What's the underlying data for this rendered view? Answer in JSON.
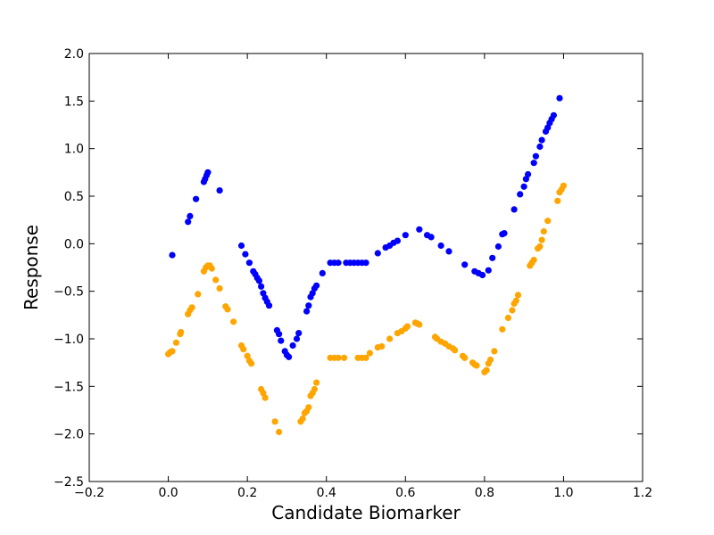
{
  "chart_data": {
    "type": "scatter",
    "title": "",
    "xlabel": "Candidate Biomarker",
    "ylabel": "Response",
    "xlim": [
      -0.2,
      1.2
    ],
    "ylim": [
      -2.5,
      2.0
    ],
    "x_ticks": [
      -0.2,
      0.0,
      0.2,
      0.4,
      0.6,
      0.8,
      1.0,
      1.2
    ],
    "x_tick_labels": [
      "−0.2",
      "0.0",
      "0.2",
      "0.4",
      "0.6",
      "0.8",
      "1.0",
      "1.2"
    ],
    "y_ticks": [
      -2.5,
      -2.0,
      -1.5,
      -1.0,
      -0.5,
      0.0,
      0.5,
      1.0,
      1.5,
      2.0
    ],
    "y_tick_labels": [
      "−2.5",
      "−2.0",
      "−1.5",
      "−1.0",
      "−0.5",
      "0.0",
      "0.5",
      "1.0",
      "1.5",
      "2.0"
    ],
    "grid": false,
    "legend": "none",
    "series": [
      {
        "color": "#0000ff",
        "points": [
          [
            0.01,
            -0.12
          ],
          [
            0.05,
            0.23
          ],
          [
            0.055,
            0.29
          ],
          [
            0.07,
            0.47
          ],
          [
            0.09,
            0.65
          ],
          [
            0.093,
            0.68
          ],
          [
            0.097,
            0.72
          ],
          [
            0.1,
            0.75
          ],
          [
            0.13,
            0.56
          ],
          [
            0.185,
            -0.02
          ],
          [
            0.195,
            -0.11
          ],
          [
            0.205,
            -0.2
          ],
          [
            0.215,
            -0.29
          ],
          [
            0.22,
            -0.32
          ],
          [
            0.225,
            -0.36
          ],
          [
            0.23,
            -0.39
          ],
          [
            0.235,
            -0.45
          ],
          [
            0.24,
            -0.52
          ],
          [
            0.245,
            -0.57
          ],
          [
            0.25,
            -0.61
          ],
          [
            0.255,
            -0.65
          ],
          [
            0.275,
            -0.91
          ],
          [
            0.28,
            -0.95
          ],
          [
            0.285,
            -1.02
          ],
          [
            0.295,
            -1.13
          ],
          [
            0.3,
            -1.17
          ],
          [
            0.305,
            -1.19
          ],
          [
            0.315,
            -1.07
          ],
          [
            0.325,
            -1.0
          ],
          [
            0.33,
            -0.94
          ],
          [
            0.35,
            -0.71
          ],
          [
            0.355,
            -0.65
          ],
          [
            0.36,
            -0.56
          ],
          [
            0.365,
            -0.52
          ],
          [
            0.37,
            -0.47
          ],
          [
            0.375,
            -0.44
          ],
          [
            0.39,
            -0.31
          ],
          [
            0.41,
            -0.2
          ],
          [
            0.42,
            -0.2
          ],
          [
            0.43,
            -0.2
          ],
          [
            0.45,
            -0.2
          ],
          [
            0.46,
            -0.2
          ],
          [
            0.47,
            -0.2
          ],
          [
            0.48,
            -0.2
          ],
          [
            0.49,
            -0.2
          ],
          [
            0.5,
            -0.2
          ],
          [
            0.53,
            -0.1
          ],
          [
            0.55,
            -0.04
          ],
          [
            0.56,
            -0.02
          ],
          [
            0.57,
            0.01
          ],
          [
            0.58,
            0.03
          ],
          [
            0.6,
            0.09
          ],
          [
            0.635,
            0.15
          ],
          [
            0.655,
            0.09
          ],
          [
            0.665,
            0.07
          ],
          [
            0.69,
            -0.02
          ],
          [
            0.71,
            -0.08
          ],
          [
            0.75,
            -0.22
          ],
          [
            0.775,
            -0.29
          ],
          [
            0.785,
            -0.31
          ],
          [
            0.795,
            -0.33
          ],
          [
            0.81,
            -0.28
          ],
          [
            0.82,
            -0.15
          ],
          [
            0.835,
            -0.03
          ],
          [
            0.845,
            0.1
          ],
          [
            0.85,
            0.11
          ],
          [
            0.875,
            0.36
          ],
          [
            0.89,
            0.52
          ],
          [
            0.9,
            0.6
          ],
          [
            0.905,
            0.68
          ],
          [
            0.91,
            0.73
          ],
          [
            0.925,
            0.85
          ],
          [
            0.93,
            0.92
          ],
          [
            0.94,
            1.02
          ],
          [
            0.945,
            1.09
          ],
          [
            0.955,
            1.18
          ],
          [
            0.96,
            1.22
          ],
          [
            0.965,
            1.27
          ],
          [
            0.97,
            1.31
          ],
          [
            0.975,
            1.35
          ],
          [
            0.99,
            1.53
          ]
        ]
      },
      {
        "color": "#ffa500",
        "points": [
          [
            0.0,
            -1.16
          ],
          [
            0.005,
            -1.14
          ],
          [
            0.01,
            -1.13
          ],
          [
            0.02,
            -1.04
          ],
          [
            0.03,
            -0.95
          ],
          [
            0.032,
            -0.93
          ],
          [
            0.05,
            -0.74
          ],
          [
            0.055,
            -0.7
          ],
          [
            0.06,
            -0.67
          ],
          [
            0.075,
            -0.53
          ],
          [
            0.09,
            -0.29
          ],
          [
            0.095,
            -0.25
          ],
          [
            0.1,
            -0.23
          ],
          [
            0.105,
            -0.23
          ],
          [
            0.11,
            -0.26
          ],
          [
            0.12,
            -0.38
          ],
          [
            0.13,
            -0.47
          ],
          [
            0.145,
            -0.66
          ],
          [
            0.15,
            -0.69
          ],
          [
            0.165,
            -0.82
          ],
          [
            0.185,
            -1.07
          ],
          [
            0.19,
            -1.11
          ],
          [
            0.2,
            -1.18
          ],
          [
            0.205,
            -1.23
          ],
          [
            0.21,
            -1.26
          ],
          [
            0.235,
            -1.53
          ],
          [
            0.24,
            -1.57
          ],
          [
            0.245,
            -1.62
          ],
          [
            0.27,
            -1.87
          ],
          [
            0.28,
            -1.98
          ],
          [
            0.335,
            -1.87
          ],
          [
            0.34,
            -1.84
          ],
          [
            0.345,
            -1.78
          ],
          [
            0.35,
            -1.76
          ],
          [
            0.355,
            -1.72
          ],
          [
            0.36,
            -1.6
          ],
          [
            0.365,
            -1.57
          ],
          [
            0.37,
            -1.53
          ],
          [
            0.375,
            -1.46
          ],
          [
            0.41,
            -1.2
          ],
          [
            0.42,
            -1.2
          ],
          [
            0.43,
            -1.2
          ],
          [
            0.445,
            -1.2
          ],
          [
            0.48,
            -1.2
          ],
          [
            0.49,
            -1.2
          ],
          [
            0.5,
            -1.2
          ],
          [
            0.51,
            -1.15
          ],
          [
            0.53,
            -1.09
          ],
          [
            0.54,
            -1.08
          ],
          [
            0.56,
            -1.0
          ],
          [
            0.58,
            -0.94
          ],
          [
            0.59,
            -0.92
          ],
          [
            0.6,
            -0.89
          ],
          [
            0.605,
            -0.87
          ],
          [
            0.625,
            -0.83
          ],
          [
            0.63,
            -0.84
          ],
          [
            0.635,
            -0.85
          ],
          [
            0.675,
            -0.98
          ],
          [
            0.68,
            -1.0
          ],
          [
            0.69,
            -1.03
          ],
          [
            0.7,
            -1.05
          ],
          [
            0.71,
            -1.08
          ],
          [
            0.72,
            -1.1
          ],
          [
            0.725,
            -1.12
          ],
          [
            0.745,
            -1.18
          ],
          [
            0.75,
            -1.2
          ],
          [
            0.77,
            -1.25
          ],
          [
            0.775,
            -1.27
          ],
          [
            0.78,
            -1.28
          ],
          [
            0.8,
            -1.35
          ],
          [
            0.805,
            -1.33
          ],
          [
            0.81,
            -1.26
          ],
          [
            0.815,
            -1.22
          ],
          [
            0.825,
            -1.13
          ],
          [
            0.845,
            -0.9
          ],
          [
            0.86,
            -0.78
          ],
          [
            0.87,
            -0.7
          ],
          [
            0.875,
            -0.63
          ],
          [
            0.88,
            -0.6
          ],
          [
            0.885,
            -0.54
          ],
          [
            0.915,
            -0.23
          ],
          [
            0.92,
            -0.2
          ],
          [
            0.925,
            -0.17
          ],
          [
            0.935,
            -0.05
          ],
          [
            0.94,
            -0.03
          ],
          [
            0.945,
            0.04
          ],
          [
            0.95,
            0.13
          ],
          [
            0.96,
            0.24
          ],
          [
            0.985,
            0.45
          ],
          [
            0.99,
            0.54
          ],
          [
            0.995,
            0.57
          ],
          [
            1.0,
            0.61
          ]
        ]
      }
    ]
  }
}
